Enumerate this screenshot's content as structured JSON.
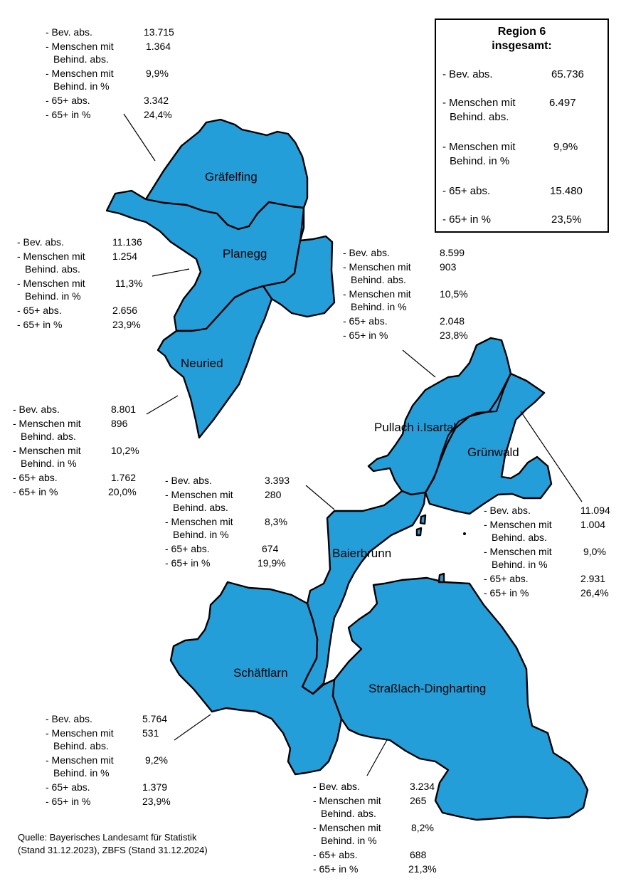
{
  "colors": {
    "region_fill": "#249ed8",
    "border": "#000000",
    "background": "#ffffff"
  },
  "row_labels": {
    "bev": "- Bev. abs.",
    "mmb_abs_1": "- Menschen mit",
    "mmb_abs_2": "Behind. abs.",
    "mmb_pct_1": "- Menschen mit",
    "mmb_pct_2": "Behind. in %",
    "abs65": "- 65+ abs.",
    "pct65": "- 65+ in %"
  },
  "region_total": {
    "title_line1": "Region 6",
    "title_line2": "insgesamt:",
    "bev": "65.736",
    "mmb_abs": "6.497",
    "mmb_pct": "9,9%",
    "abs65": "15.480",
    "pct65": "23,5%"
  },
  "municipalities": {
    "graefelfing": {
      "name": "Gräfelfing",
      "bev": "13.715",
      "mmb_abs": "1.364",
      "mmb_pct": "9,9%",
      "abs65": "3.342",
      "pct65": "24,4%"
    },
    "planegg": {
      "name": "Planegg",
      "bev": "11.136",
      "mmb_abs": "1.254",
      "mmb_pct": "11,3%",
      "abs65": "2.656",
      "pct65": "23,9%"
    },
    "pullach": {
      "name": "Pullach i.Isartal",
      "bev": "8.599",
      "mmb_abs": "903",
      "mmb_pct": "10,5%",
      "abs65": "2.048",
      "pct65": "23,8%"
    },
    "neuried": {
      "name": "Neuried",
      "bev": "8.801",
      "mmb_abs": "896",
      "mmb_pct": "10,2%",
      "abs65": "1.762",
      "pct65": "20,0%"
    },
    "baierbrunn": {
      "name": "Baierbrunn",
      "bev": "3.393",
      "mmb_abs": "280",
      "mmb_pct": "8,3%",
      "abs65": "674",
      "pct65": "19,9%"
    },
    "gruenwald": {
      "name": "Grünwald",
      "bev": "11.094",
      "mmb_abs": "1.004",
      "mmb_pct": "9,0%",
      "abs65": "2.931",
      "pct65": "26,4%"
    },
    "schaeftlarn": {
      "name": "Schäftlarn",
      "bev": "5.764",
      "mmb_abs": "531",
      "mmb_pct": "9,2%",
      "abs65": "1.379",
      "pct65": "23,9%"
    },
    "strasslach": {
      "name": "Straßlach-Dingharting",
      "bev": "3.234",
      "mmb_abs": "265",
      "mmb_pct": "8,2%",
      "abs65": "688",
      "pct65": "21,3%"
    }
  },
  "source": {
    "line1": "Quelle: Bayerisches Landesamt für Statistik",
    "line2": "(Stand 31.12.2023), ZBFS (Stand 31.12.2024)"
  }
}
